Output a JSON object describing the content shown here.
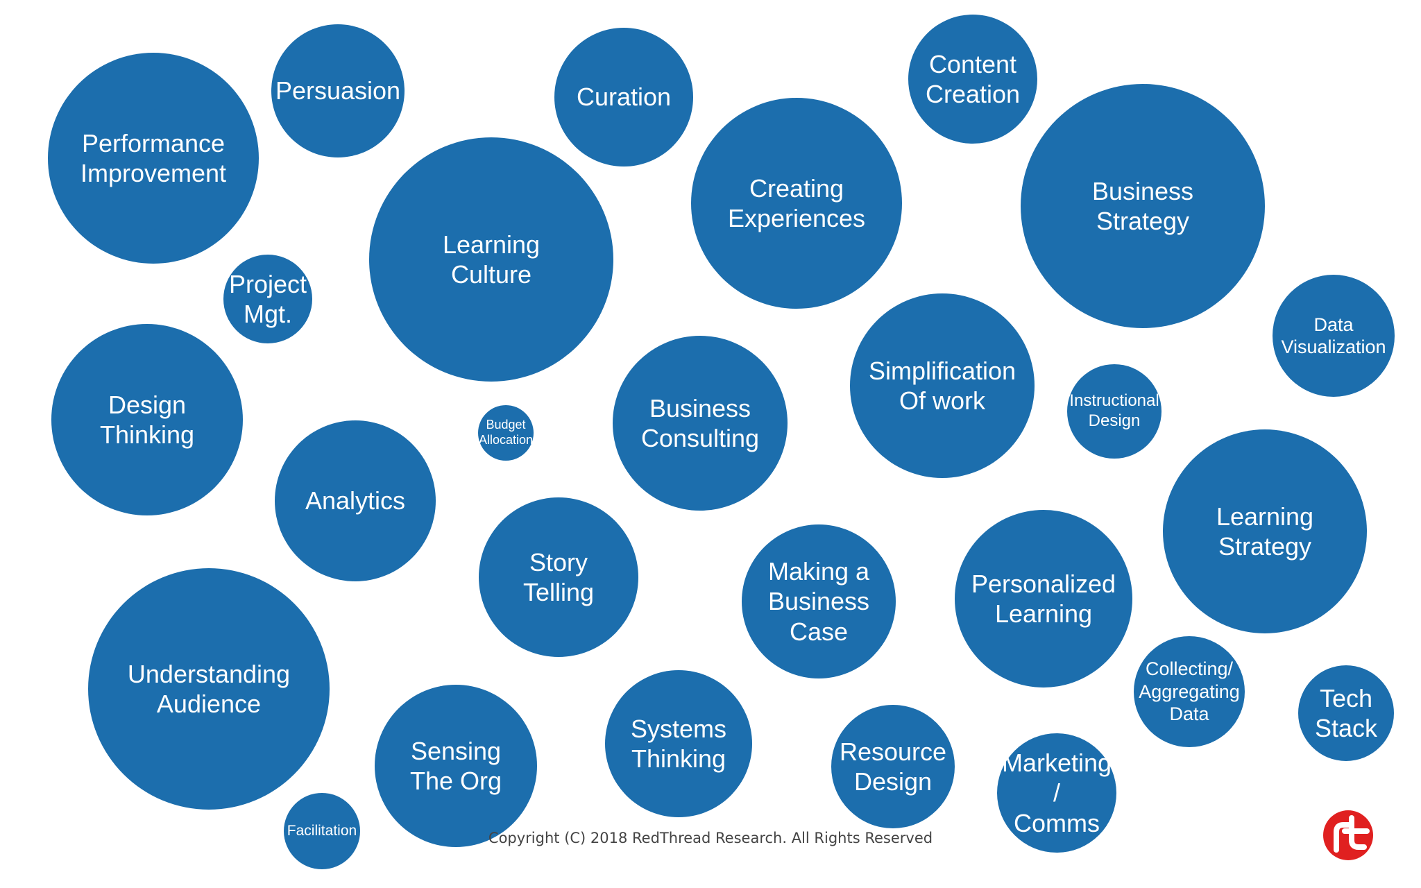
{
  "colors": {
    "bubble": "#1c6ead",
    "logo": "#e02020",
    "background": "#ffffff"
  },
  "bubbles": [
    {
      "id": "performance-improvement",
      "label": "Performance\nImprovement"
    },
    {
      "id": "persuasion",
      "label": "Persuasion"
    },
    {
      "id": "curation",
      "label": "Curation"
    },
    {
      "id": "content-creation",
      "label": "Content\nCreation"
    },
    {
      "id": "business-strategy",
      "label": "Business\nStrategy"
    },
    {
      "id": "creating-experiences",
      "label": "Creating\nExperiences"
    },
    {
      "id": "learning-culture",
      "label": "Learning\nCulture"
    },
    {
      "id": "project-mgt",
      "label": "Project\nMgt."
    },
    {
      "id": "data-visualization",
      "label": "Data\nVisualization"
    },
    {
      "id": "simplification-of-work",
      "label": "Simplification\nOf work"
    },
    {
      "id": "design-thinking",
      "label": "Design\nThinking"
    },
    {
      "id": "budget-allocation",
      "label": "Budget\nAllocation"
    },
    {
      "id": "business-consulting",
      "label": "Business\nConsulting"
    },
    {
      "id": "instructional-design",
      "label": "Instructional\nDesign"
    },
    {
      "id": "analytics",
      "label": "Analytics"
    },
    {
      "id": "learning-strategy",
      "label": "Learning\nStrategy"
    },
    {
      "id": "story-telling",
      "label": "Story\nTelling"
    },
    {
      "id": "making-a-business-case",
      "label": "Making a\nBusiness\nCase"
    },
    {
      "id": "personalized-learning",
      "label": "Personalized\nLearning"
    },
    {
      "id": "understanding-audience",
      "label": "Understanding\nAudience"
    },
    {
      "id": "collecting-aggregating-data",
      "label": "Collecting/\nAggregating\nData"
    },
    {
      "id": "tech-stack",
      "label": "Tech\nStack"
    },
    {
      "id": "systems-thinking",
      "label": "Systems\nThinking"
    },
    {
      "id": "sensing-the-org",
      "label": "Sensing\nThe Org"
    },
    {
      "id": "resource-design",
      "label": "Resource\nDesign"
    },
    {
      "id": "marketing-comms",
      "label": "Marketing /\nComms"
    },
    {
      "id": "facilitation",
      "label": "Facilitation"
    }
  ],
  "copyright": "Copyright (C) 2018 RedThread Research. All Rights Reserved"
}
